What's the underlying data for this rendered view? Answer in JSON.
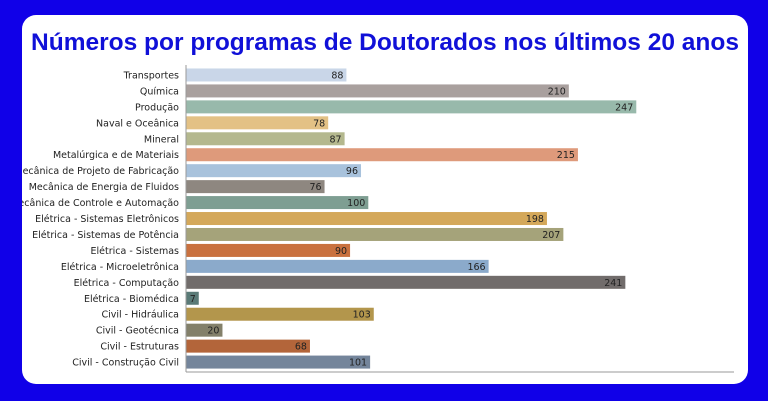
{
  "chart_data": {
    "type": "bar",
    "orientation": "horizontal",
    "title": "Números por programas de Doutorados nos últimos 20 anos",
    "xlabel": "",
    "ylabel": "",
    "xlim": [
      0,
      300
    ],
    "grid": false,
    "legend": "none",
    "categories": [
      "Transportes",
      "Química",
      "Produção",
      "Naval e Oceânica",
      "Mineral",
      "Metalúrgica e de Materiais",
      "Mecânica de Projeto de Fabricação",
      "Mecânica de Energia de Fluidos",
      "Mecânica de Controle e Automação",
      "Elétrica - Sistemas Eletrônicos",
      "Elétrica - Sistemas de Potência",
      "Elétrica - Sistemas",
      "Elétrica - Microeletrônica",
      "Elétrica - Computação",
      "Elétrica - Biomédica",
      "Civil - Hidráulica",
      "Civil - Geotécnica",
      "Civil - Estruturas",
      "Civil - Construção Civil"
    ],
    "values": [
      88,
      210,
      247,
      78,
      87,
      215,
      96,
      76,
      100,
      198,
      207,
      90,
      166,
      241,
      7,
      103,
      20,
      68,
      101
    ],
    "value_labels": [
      "88",
      "210",
      "247",
      "78",
      "87",
      "215",
      "96",
      "76",
      "100",
      "198",
      "207",
      "90",
      "166",
      "241",
      "7",
      "103",
      "20",
      "68",
      "101"
    ],
    "colors": [
      "#c9d6e8",
      "#a9a09e",
      "#98b9ab",
      "#e3c185",
      "#b4b88e",
      "#de9a7b",
      "#a8c2dc",
      "#8e8780",
      "#7e9e92",
      "#d4a85a",
      "#a5a37a",
      "#c9713f",
      "#8baacb",
      "#716c6b",
      "#5a7a77",
      "#b3964c",
      "#83806a",
      "#b3653a",
      "#74859b"
    ]
  }
}
